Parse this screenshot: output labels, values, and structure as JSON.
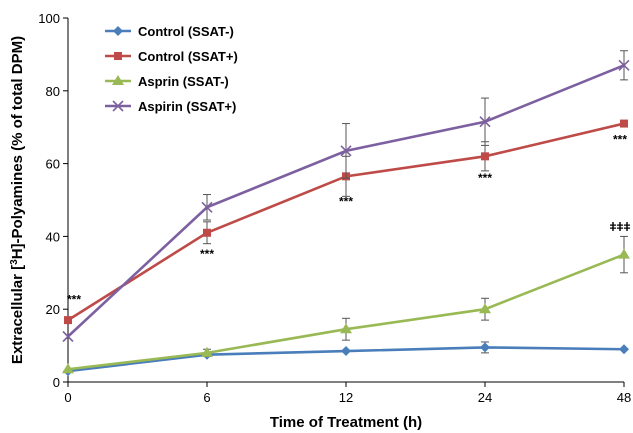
{
  "chart_data": {
    "type": "line",
    "xlabel": "Time of Treatment (h)",
    "ylabel_parts": [
      "Extracellular [",
      "3",
      "H]-Polyamines (% of total DPM)"
    ],
    "categories": [
      "0",
      "6",
      "12",
      "24",
      "48"
    ],
    "ylim": [
      0,
      100
    ],
    "yticks": [
      "0",
      "20",
      "40",
      "60",
      "80",
      "100"
    ],
    "grid": false,
    "legend_position": "top-left",
    "series": [
      {
        "name": "Control (SSAT-)",
        "color": "#4a7ebb",
        "marker": "diamond",
        "values": [
          3,
          7.5,
          8.5,
          9.5,
          9
        ],
        "errors": [
          0,
          0,
          0,
          1.5,
          0
        ]
      },
      {
        "name": "Control (SSAT+)",
        "color": "#be4b48",
        "marker": "square",
        "values": [
          17,
          41,
          56.5,
          62,
          71
        ],
        "errors": [
          0,
          3,
          5.5,
          4,
          0
        ]
      },
      {
        "name": "Asprin (SSAT-)",
        "color": "#98b954",
        "marker": "triangle",
        "values": [
          3.5,
          8,
          14.5,
          20,
          35
        ],
        "errors": [
          0,
          1,
          3,
          3,
          5
        ]
      },
      {
        "name": "Aspirin (SSAT+)",
        "color": "#7d60a0",
        "marker": "x",
        "values": [
          12.5,
          48,
          63.5,
          71.5,
          87
        ],
        "errors": [
          0,
          3.5,
          7.5,
          6.5,
          4
        ]
      }
    ],
    "annotations": [
      {
        "text": "***",
        "x_index": 0,
        "y": 21.5
      },
      {
        "text": "***",
        "x_index": 1,
        "y": 34
      },
      {
        "text": "***",
        "x_index": 2,
        "y": 48.5
      },
      {
        "text": "***",
        "x_index": 3,
        "y": 55
      },
      {
        "text": "***",
        "x_index": 4,
        "y": 65.5
      },
      {
        "text": "ǂǂǂ",
        "x_index": 4,
        "y": 41.5
      }
    ]
  }
}
